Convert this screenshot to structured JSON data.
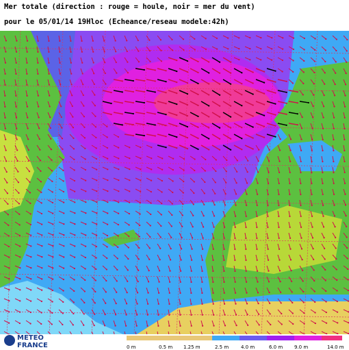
{
  "header": {
    "line1": "Mer totale (direction : rouge = houle, noir = mer du vent)",
    "line2": "pour le 05/01/14 19Hloc (Echeance/reseau modele:42h)"
  },
  "logo": {
    "line1": "METEO",
    "line2": "FRANCE"
  },
  "legend": {
    "labels": [
      "0 m",
      "0.5 m",
      "1.25 m",
      "2.5 m",
      "4.0 m",
      "6.0 m",
      "9.0 m",
      "14.0 m"
    ]
  }
}
